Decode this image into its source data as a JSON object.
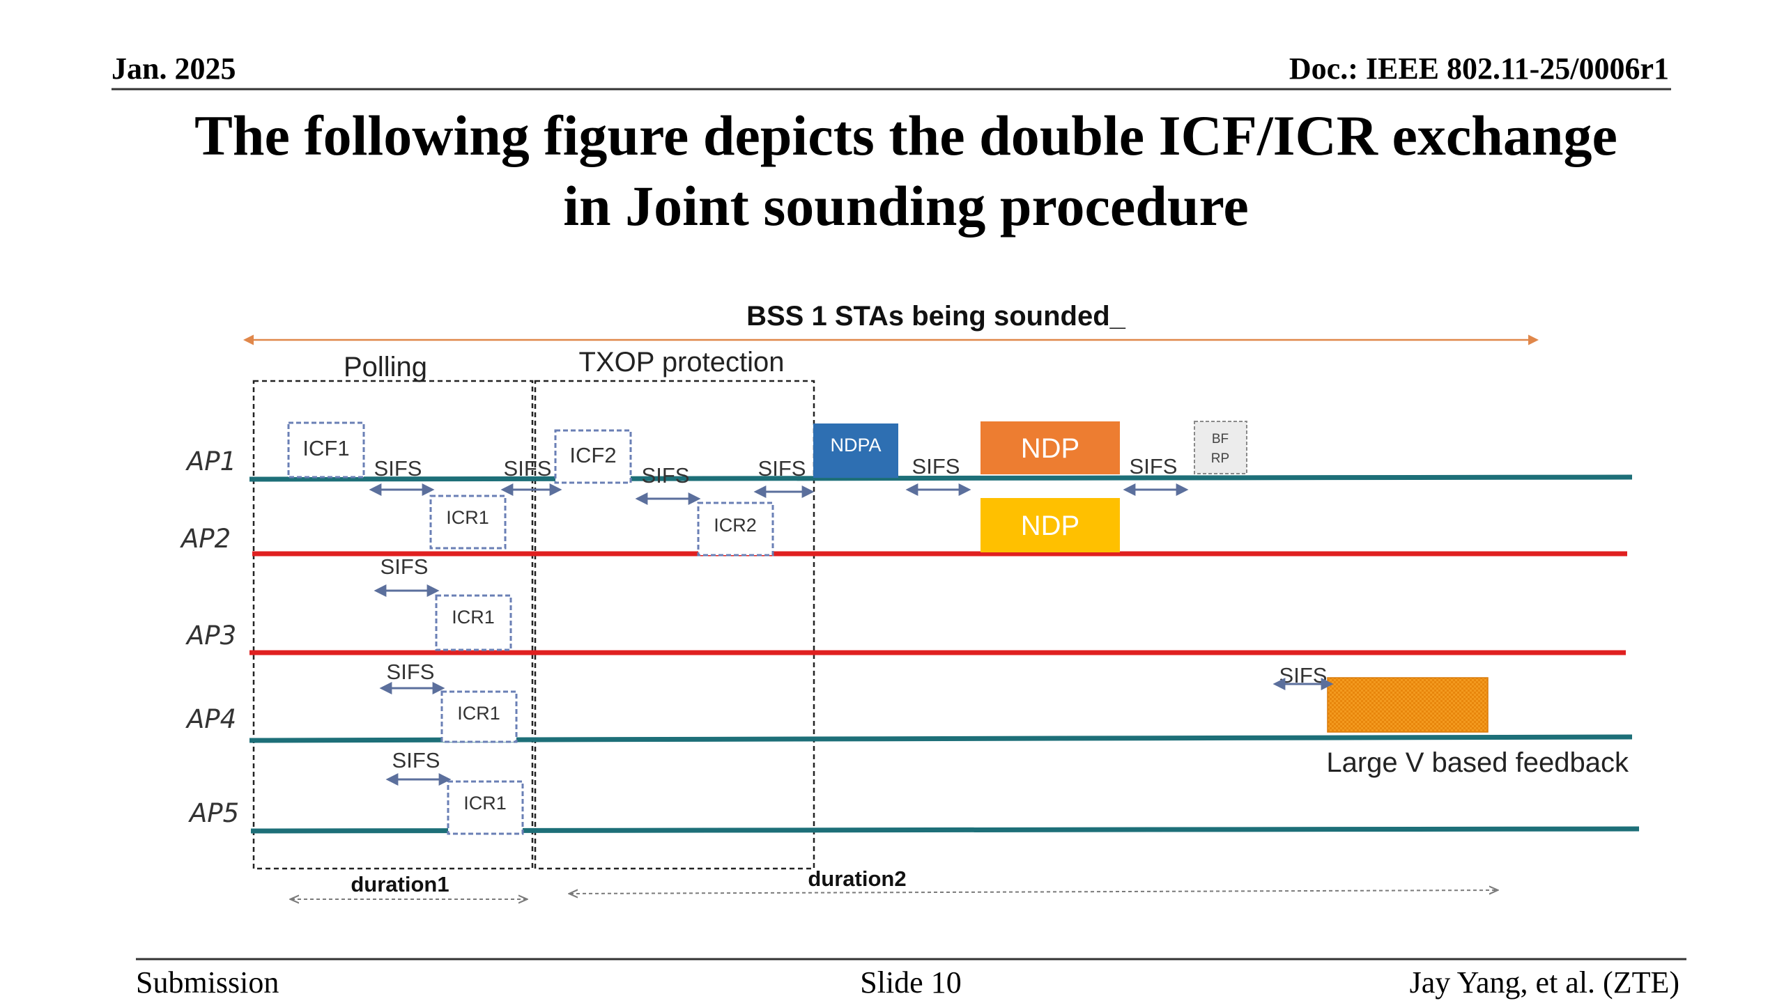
{
  "header": {
    "date": "Jan. 2025",
    "doc": "Doc.: IEEE 802.11-25/0006r1"
  },
  "title": {
    "line1": "The following figure depicts the double ICF/ICR exchange",
    "line2": "in Joint sounding procedure"
  },
  "diagram": {
    "top_label": "BSS 1 STAs being sounded_",
    "polling_label": "Polling",
    "txop_label": "TXOP protection",
    "ap_labels": [
      "AP1",
      "AP2",
      "AP3",
      "AP4",
      "AP5"
    ],
    "sifs_label": "SIFS",
    "frames": {
      "icf1": "ICF1",
      "icf2": "ICF2",
      "icr1": "ICR1",
      "icr2": "ICR2",
      "ndpa": "NDPA",
      "ndp": "NDP",
      "bfrp_line1": "BF",
      "bfrp_line2": "RP"
    },
    "feedback_label": "Large V based feedback",
    "duration1": "duration1",
    "duration2": "duration2",
    "colors": {
      "ap1_line": "#1d6f78",
      "ap2_line": "#e02020",
      "ap3_line": "#e02020",
      "ap4_line": "#1d6f78",
      "ap5_line": "#1d6f78",
      "ndpa": "#2e6fb2",
      "ndp_orange": "#ed7d31",
      "ndp_yellow": "#ffc000",
      "feedback": "#f39a1f",
      "dashed_box": "#6a7fb5",
      "sifs_arrow": "#5b6f9c",
      "top_arrow": "#e0874a"
    }
  },
  "footer": {
    "left": "Submission",
    "center": "Slide 10",
    "right": "Jay Yang, et al. (ZTE)"
  }
}
